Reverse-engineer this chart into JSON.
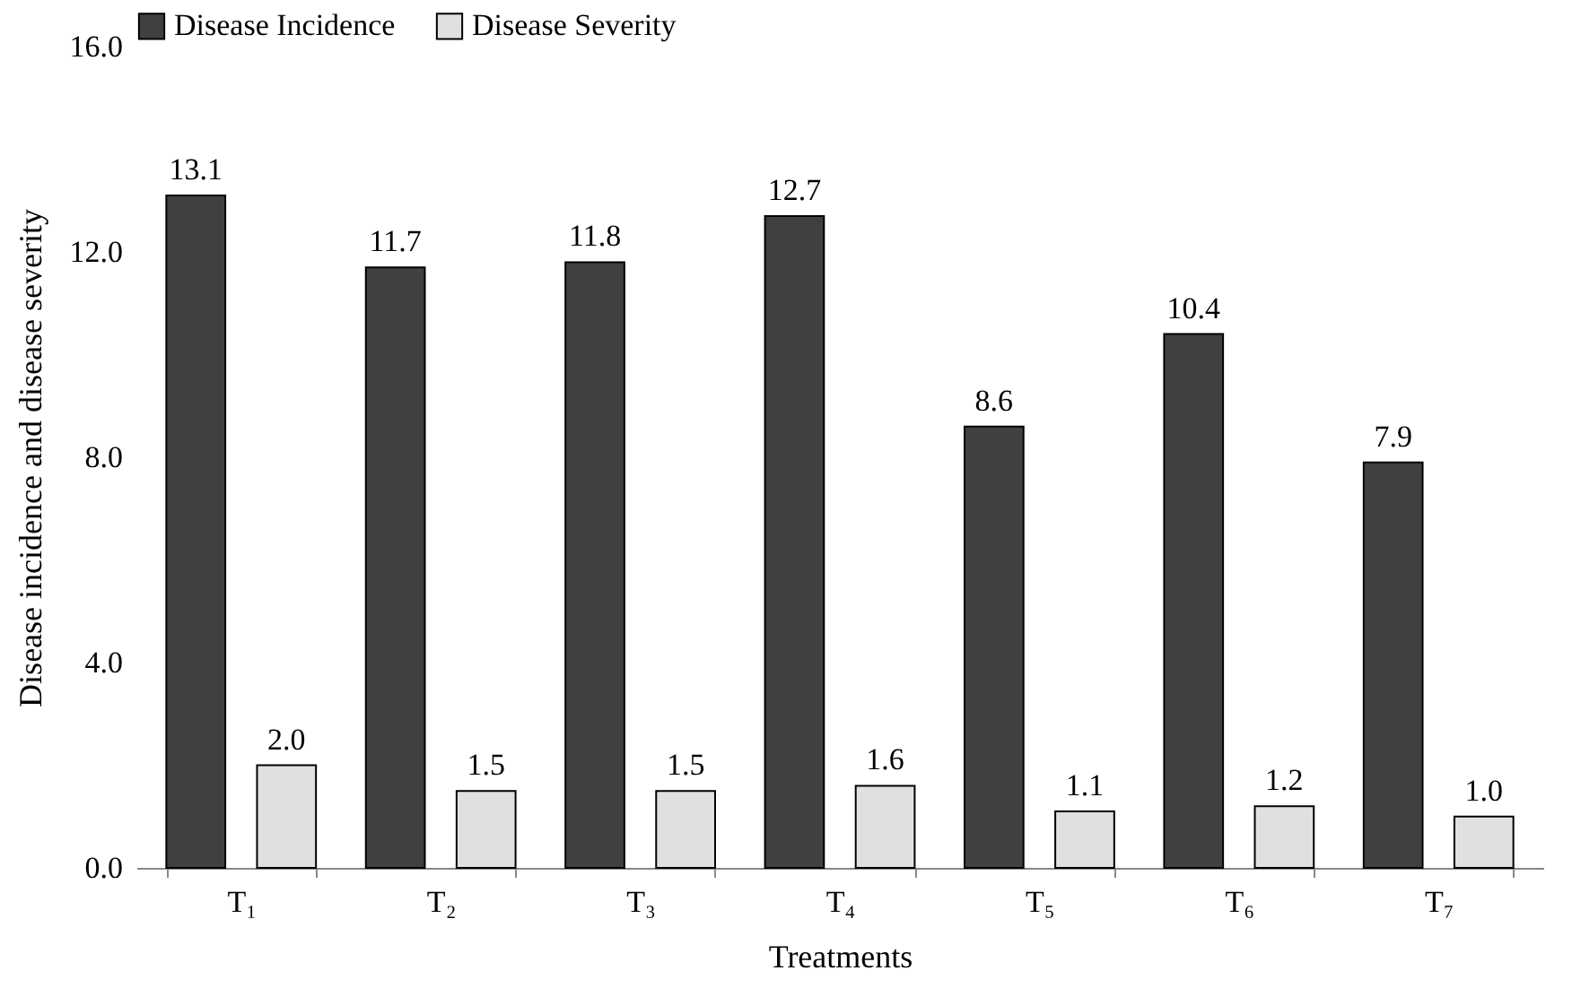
{
  "chart_data": {
    "type": "bar",
    "xlabel": "Treatments",
    "ylabel": "Disease incidence and disease severity",
    "categories": [
      "T₁",
      "T₂",
      "T₃",
      "T₄",
      "T₅",
      "T₆",
      "T₇"
    ],
    "series": [
      {
        "name": "Disease Incidence",
        "color": "#404040",
        "values": [
          13.1,
          11.7,
          11.8,
          12.7,
          8.6,
          10.4,
          7.9
        ],
        "value_labels": [
          "13.1",
          "11.7",
          "11.8",
          "12.7",
          "8.6",
          "10.4",
          "7.9"
        ]
      },
      {
        "name": "Disease Severity",
        "color": "#e0e0e0",
        "values": [
          2.0,
          1.5,
          1.5,
          1.6,
          1.1,
          1.2,
          1.0
        ],
        "value_labels": [
          "2.0",
          "1.5",
          "1.5",
          "1.6",
          "1.1",
          "1.2",
          "1.0"
        ]
      }
    ],
    "ylim": [
      0,
      16
    ],
    "yticks": [
      {
        "value": 0,
        "label": "0.0"
      },
      {
        "value": 4,
        "label": "4.0"
      },
      {
        "value": 8,
        "label": "8.0"
      },
      {
        "value": 12,
        "label": "12.0"
      },
      {
        "value": 16,
        "label": "16.0"
      }
    ],
    "legend": "top",
    "grid": false
  }
}
